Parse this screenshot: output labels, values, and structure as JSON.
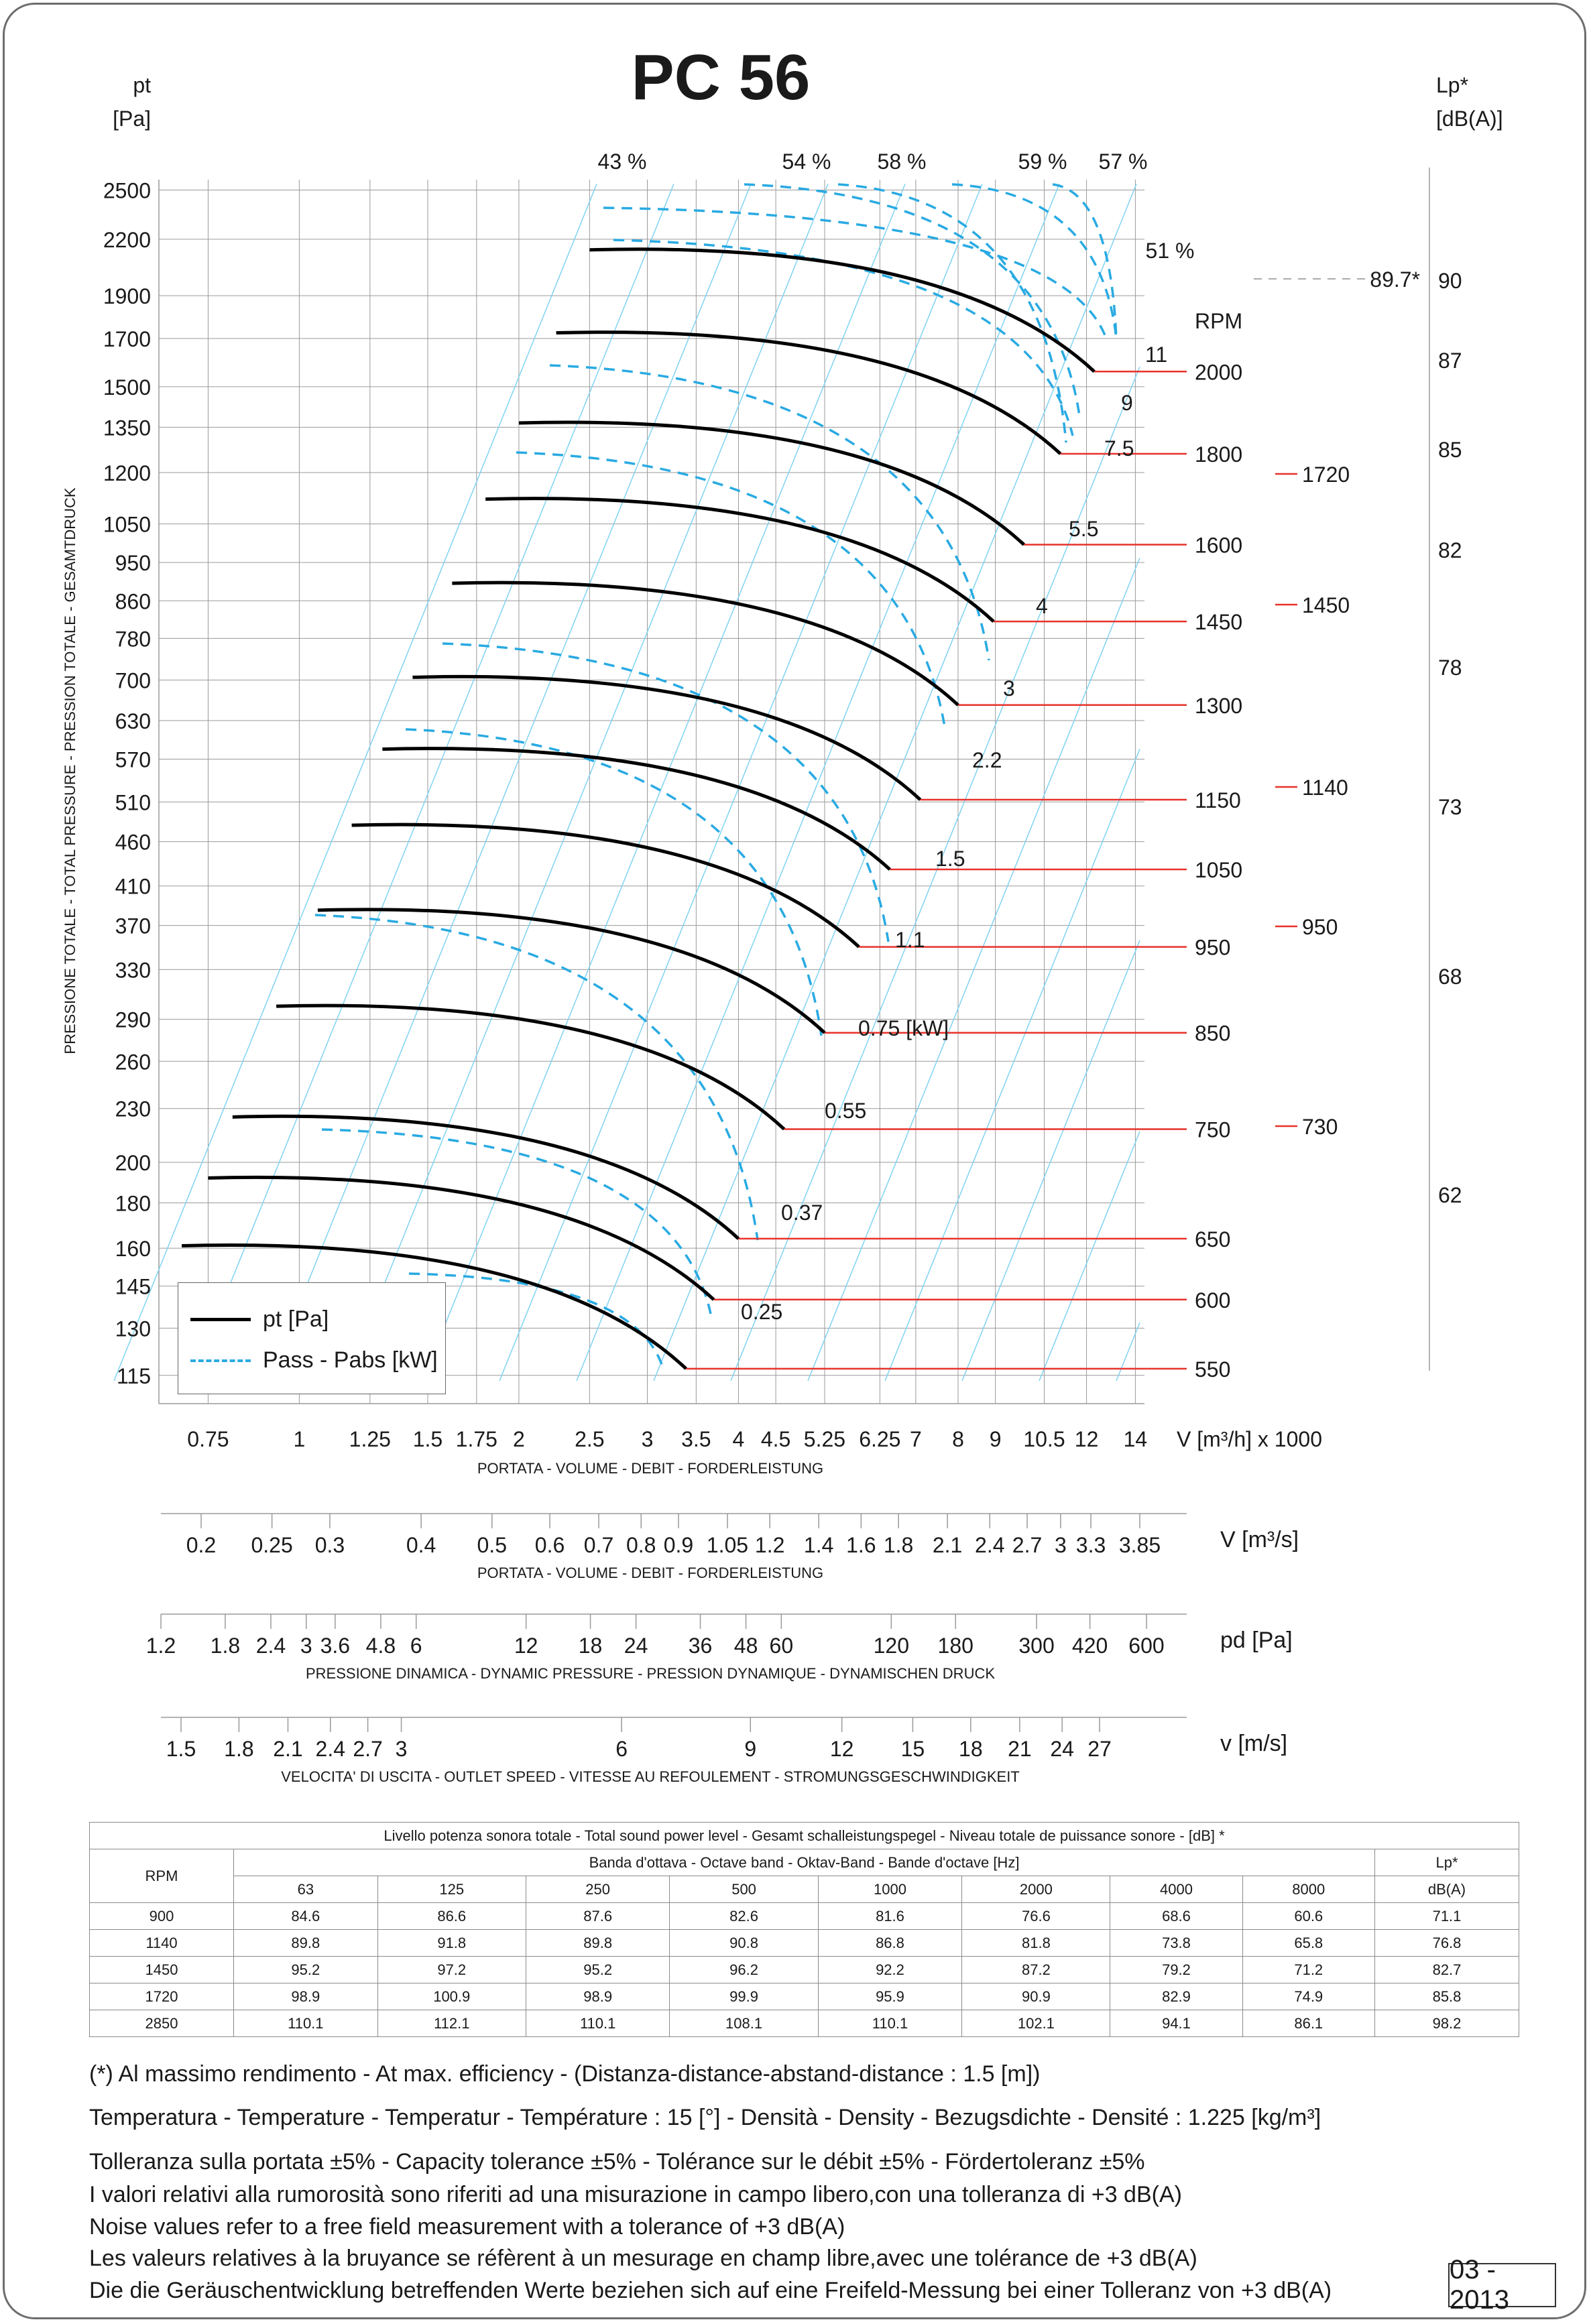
{
  "chart_data": {
    "type": "line",
    "title": "PC 56",
    "ylabel_unit": "pt",
    "ylabel_unit2": "[Pa]",
    "ylabel_side": "PRESSIONE TOTALE - TOTAL PRESSURE - PRESSION TOTALE - GESAMTDRUCK",
    "ylabel_right": "Lp*",
    "ylabel_right2": "[dB(A)]",
    "y_log": true,
    "ylim": [
      105,
      2650
    ],
    "y_ticks": [
      "2500",
      "2200",
      "1900",
      "1700",
      "1500",
      "1350",
      "1200",
      "1050",
      "950",
      "860",
      "780",
      "700",
      "630",
      "570",
      "510",
      "460",
      "410",
      "370",
      "330",
      "290",
      "260",
      "230",
      "200",
      "180",
      "160",
      "145",
      "130",
      "115"
    ],
    "lp_ticks": [
      "90",
      "87",
      "85",
      "82",
      "78",
      "73",
      "68",
      "62"
    ],
    "x_log": true,
    "xlim": [
      0.6,
      14.5
    ],
    "x_ticks": [
      "0.75",
      "1",
      "1.25",
      "1.5",
      "1.75",
      "2",
      "2.5",
      "3",
      "3.5",
      "4",
      "4.5",
      "5.25",
      "6.25",
      "7",
      "8",
      "9",
      "10.5",
      "12",
      "14"
    ],
    "x_unit": "V [m³/h]  x 1000",
    "x_label": "PORTATA - VOLUME - DEBIT - FORDERLEISTUNG",
    "scales": [
      {
        "unit": "V  [m³/s]",
        "label": "PORTATA - VOLUME - DEBIT - FORDERLEISTUNG",
        "ticks": [
          "0.2",
          "0.25",
          "0.3",
          "0.4",
          "0.5",
          "0.6",
          "0.7",
          "0.8",
          "0.9",
          "1.05",
          "1.2",
          "1.4",
          "1.6",
          "1.8",
          "2.1",
          "2.4",
          "2.7",
          "3",
          "3.3",
          "3.85"
        ]
      },
      {
        "unit": "pd  [Pa]",
        "label": "PRESSIONE DINAMICA - DYNAMIC PRESSURE - PRESSION DYNAMIQUE - DYNAMISCHEN DRUCK",
        "ticks": [
          "1.2",
          "1.8",
          "2.4",
          "3",
          "3.6",
          "4.8",
          "6",
          "12",
          "18",
          "24",
          "36",
          "48",
          "60",
          "120",
          "180",
          "300",
          "420",
          "600"
        ]
      },
      {
        "unit": "v  [m/s]",
        "label": "VELOCITA' DI USCITA - OUTLET SPEED - VITESSE AU REFOULEMENT - STROMUNGSGESCHWINDIGKEIT",
        "ticks": [
          "1.5",
          "1.8",
          "2.1",
          "2.4",
          "2.7",
          "3",
          "6",
          "9",
          "12",
          "15",
          "18",
          "21",
          "24",
          "27"
        ]
      }
    ],
    "rpm_header": "RPM",
    "series": [
      {
        "rpm": "2000",
        "x_start": 2.5,
        "x_end": 12.3,
        "y_start": 2140,
        "y_end": 1560,
        "power": "11"
      },
      {
        "rpm": "1800",
        "x_start": 2.25,
        "x_end": 11.05,
        "y_start": 1725,
        "y_end": 1260,
        "power": "7.5"
      },
      {
        "rpm": "1600",
        "x_start": 2.0,
        "x_end": 9.85,
        "y_start": 1365,
        "y_end": 995
      },
      {
        "rpm": "1450",
        "x_start": 1.8,
        "x_end": 8.95,
        "y_start": 1120,
        "y_end": 815,
        "power": "4"
      },
      {
        "rpm": "1300",
        "x_start": 1.62,
        "x_end": 8.0,
        "y_start": 900,
        "y_end": 656,
        "power": "3"
      },
      {
        "rpm": "1150",
        "x_start": 1.43,
        "x_end": 7.1,
        "y_start": 705,
        "y_end": 513
      },
      {
        "rpm": "1050",
        "x_start": 1.3,
        "x_end": 6.45,
        "y_start": 585,
        "y_end": 428,
        "power": "1.5"
      },
      {
        "rpm": "950",
        "x_start": 1.18,
        "x_end": 5.85,
        "y_start": 480,
        "y_end": 350,
        "power": "1.1"
      },
      {
        "rpm": "850",
        "x_start": 1.06,
        "x_end": 5.25,
        "y_start": 385,
        "y_end": 280
      },
      {
        "rpm": "750",
        "x_start": 0.93,
        "x_end": 4.62,
        "y_start": 300,
        "y_end": 218,
        "power": "0.55"
      },
      {
        "rpm": "650",
        "x_start": 0.81,
        "x_end": 4.0,
        "y_start": 225,
        "y_end": 164,
        "power": "0.37"
      },
      {
        "rpm": "600",
        "x_start": 0.75,
        "x_end": 3.7,
        "y_start": 192,
        "y_end": 140
      },
      {
        "rpm": "550",
        "x_start": 0.69,
        "x_end": 3.39,
        "y_start": 161,
        "y_end": 117
      }
    ],
    "power_labels": [
      "11",
      "9",
      "7.5",
      "5.5",
      "4",
      "3",
      "2.2",
      "1.5",
      "1.1",
      "0.75  [kW]",
      "0.55",
      "0.37",
      "0.25"
    ],
    "efficiency_labels": [
      "43 %",
      "54 %",
      "58 %",
      "59 %",
      "57 %",
      "51 %"
    ],
    "max_eff_label": "89.7*",
    "noise_rpm_marks": [
      "1720",
      "1450",
      "1140",
      "950",
      "730"
    ],
    "legend": {
      "pt": "pt [Pa]",
      "pass": "Pass - Pabs [kW]"
    }
  },
  "table": {
    "title": "Livello potenza sonora totale - Total sound power level - Gesamt schalleistungspegel - Niveau totale de puissance sonore - [dB]   *",
    "band_header": "Banda d'ottava - Octave band - Oktav-Band - Bande d'octave [Hz]",
    "rpm_header": "RPM",
    "lp_header": "Lp*",
    "lp_unit": "dB(A)",
    "bands": [
      "63",
      "125",
      "250",
      "500",
      "1000",
      "2000",
      "4000",
      "8000"
    ],
    "rows": [
      {
        "rpm": "900",
        "values": [
          "84.6",
          "86.6",
          "87.6",
          "82.6",
          "81.6",
          "76.6",
          "68.6",
          "60.6"
        ],
        "lp": "71.1"
      },
      {
        "rpm": "1140",
        "values": [
          "89.8",
          "91.8",
          "89.8",
          "90.8",
          "86.8",
          "81.8",
          "73.8",
          "65.8"
        ],
        "lp": "76.8"
      },
      {
        "rpm": "1450",
        "values": [
          "95.2",
          "97.2",
          "95.2",
          "96.2",
          "92.2",
          "87.2",
          "79.2",
          "71.2"
        ],
        "lp": "82.7"
      },
      {
        "rpm": "1720",
        "values": [
          "98.9",
          "100.9",
          "98.9",
          "99.9",
          "95.9",
          "90.9",
          "82.9",
          "74.9"
        ],
        "lp": "85.8"
      },
      {
        "rpm": "2850",
        "values": [
          "110.1",
          "112.1",
          "110.1",
          "108.1",
          "110.1",
          "102.1",
          "94.1",
          "86.1"
        ],
        "lp": "98.2"
      }
    ]
  },
  "notes": {
    "max_eff": "(*) Al massimo rendimento - At max. efficiency - (Distanza-distance-abstand-distance : 1.5 [m])",
    "temp": "Temperatura - Temperature - Temperatur - Température : 15 [°]  -  Densità - Density - Bezugsdichte - Densité : 1.225 [kg/m³]",
    "tolerance": "Tolleranza sulla portata  ±5% - Capacity tolerance ±5% - Tolérance sur le débit ±5% - Fördertoleranz ±5%",
    "noise_it": "I valori relativi alla rumorosità sono riferiti ad una misurazione in campo libero,con una tolleranza di +3 dB(A)",
    "noise_en": "Noise values refer to a free field measurement with a tolerance of +3 dB(A)",
    "noise_fr": "Les valeurs relatives à la bruyance se réfèrent à un mesurage en champ libre,avec une tolérance de +3 dB(A)",
    "noise_de": "Die die Geräuschentwicklung betreffenden Werte beziehen sich auf eine Freifeld-Messung bei einer Tolleranz von +3 dB(A)"
  },
  "date": "03 - 2013",
  "colors": {
    "curve": "#000000",
    "power": "#29aae2",
    "grid": "#9a9a9a",
    "efficiency": "#7fd3f2",
    "rpm_line": "#e8322b",
    "text": "#1a1a1a"
  }
}
